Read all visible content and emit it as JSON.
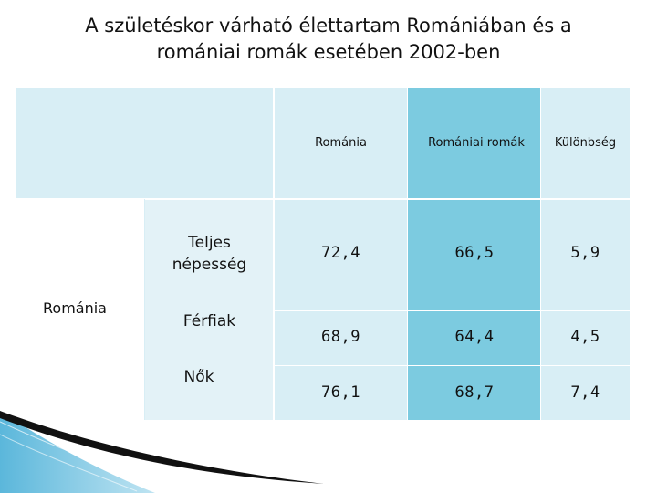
{
  "title": {
    "line1": "A születéskor várható élettartam Romániában és a",
    "line2": "romániai romák esetében 2002-ben"
  },
  "table": {
    "column_headers": [
      "Románia",
      "Romániai romák",
      "Különbség"
    ],
    "group_label": "Románia",
    "rows": [
      {
        "label_line1": "Teljes",
        "label_line2": "népesség",
        "values": [
          "72,4",
          "66,5",
          "5,9"
        ]
      },
      {
        "label_line1": "Férfiak",
        "label_line2": "",
        "values": [
          "68,9",
          "64,4",
          "4,5"
        ]
      },
      {
        "label_line1": "Nők",
        "label_line2": "",
        "values": [
          "76,1",
          "68,7",
          "7,4"
        ]
      }
    ]
  },
  "colors": {
    "cell_light": "#d8eef5",
    "cell_accent": "#7ccbe0",
    "decor_blue": "#5bb7db"
  }
}
